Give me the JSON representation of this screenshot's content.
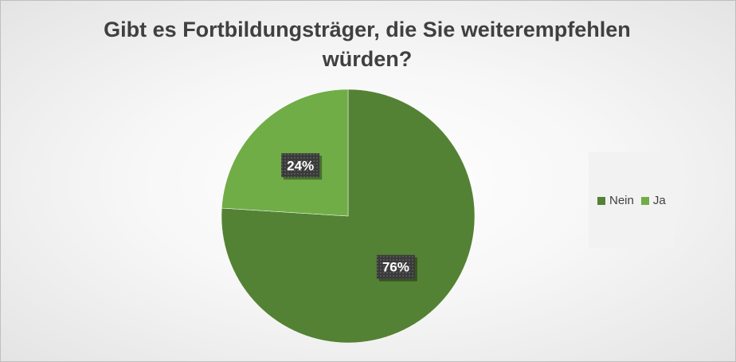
{
  "chart_data": {
    "type": "pie",
    "title": "Gibt es Fortbildungsträger, die Sie weiterempfehlen würden?",
    "title_lines": [
      "Gibt es Fortbildungsträger, die Sie weiterempfehlen",
      "würden?"
    ],
    "categories": [
      "Nein",
      "Ja"
    ],
    "values": [
      76,
      24
    ],
    "data_labels": [
      "76%",
      "24%"
    ],
    "colors": [
      "#548235",
      "#70ad47"
    ],
    "legend": {
      "position": "right",
      "items": [
        {
          "label": "Nein",
          "color": "#548235"
        },
        {
          "label": "Ja",
          "color": "#70ad47"
        }
      ]
    }
  }
}
